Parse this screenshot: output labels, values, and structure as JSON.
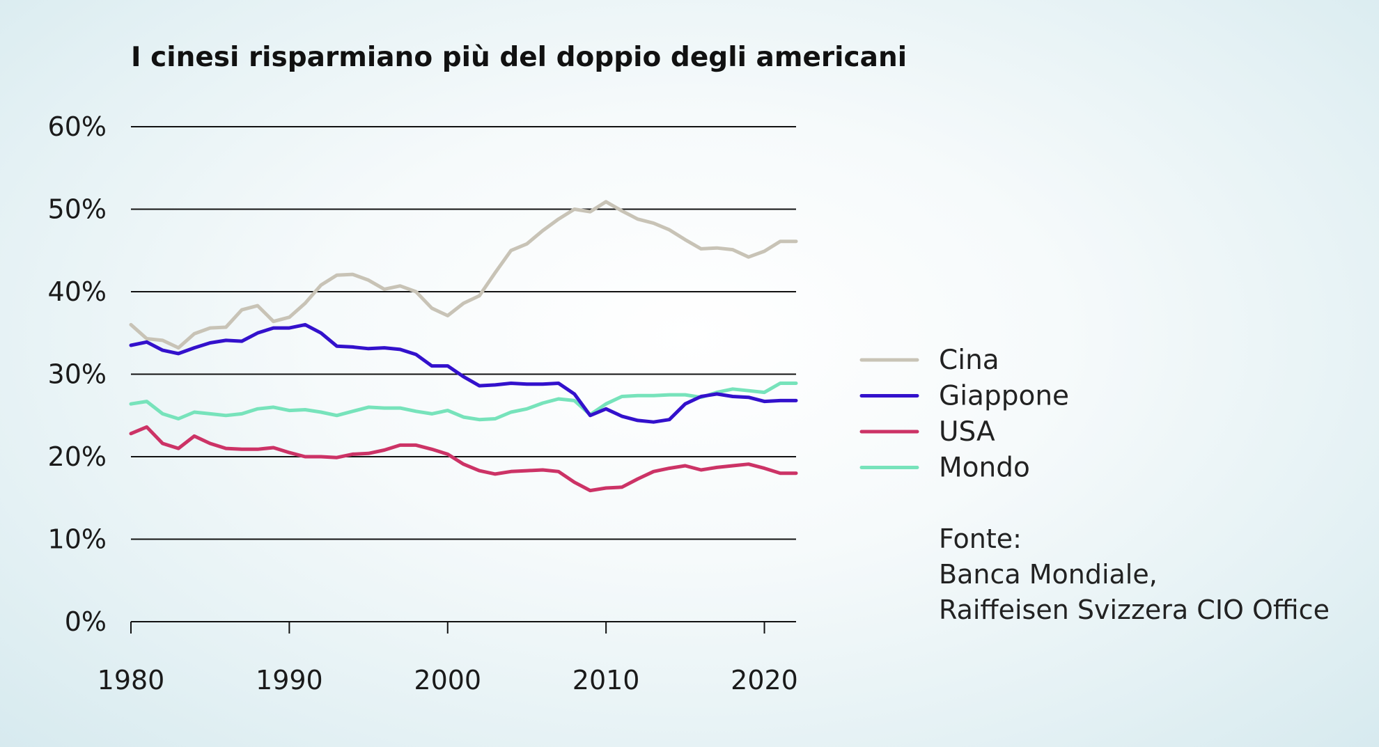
{
  "chart_data": {
    "type": "line",
    "title": "I cinesi risparmiano più del doppio degli americani",
    "xlabel": "",
    "ylabel": "",
    "xlim": [
      1980,
      2022
    ],
    "ylim": [
      0,
      60
    ],
    "x_ticks": [
      1980,
      1990,
      2000,
      2010,
      2020
    ],
    "x_tick_labels": [
      "1980",
      "1990",
      "2000",
      "2010",
      "2020"
    ],
    "y_ticks": [
      0,
      10,
      20,
      30,
      40,
      50,
      60
    ],
    "y_tick_labels": [
      "0%",
      "10%",
      "20%",
      "30%",
      "40%",
      "50%",
      "60%"
    ],
    "grid": true,
    "legend_position": "right",
    "x": [
      1980,
      1981,
      1982,
      1983,
      1984,
      1985,
      1986,
      1987,
      1988,
      1989,
      1990,
      1991,
      1992,
      1993,
      1994,
      1995,
      1996,
      1997,
      1998,
      1999,
      2000,
      2001,
      2002,
      2003,
      2004,
      2005,
      2006,
      2007,
      2008,
      2009,
      2010,
      2011,
      2012,
      2013,
      2014,
      2015,
      2016,
      2017,
      2018,
      2019,
      2020,
      2021,
      2022
    ],
    "series": [
      {
        "name": "Cina",
        "color": "#c8c3b6",
        "values": [
          36.0,
          34.3,
          34.1,
          33.2,
          34.9,
          35.6,
          35.7,
          37.8,
          38.3,
          36.4,
          36.9,
          38.6,
          40.8,
          42.0,
          42.1,
          41.4,
          40.3,
          40.7,
          40.0,
          38.0,
          37.1,
          38.6,
          39.5,
          42.3,
          45.0,
          45.8,
          47.4,
          48.8,
          50.0,
          49.7,
          50.9,
          49.8,
          48.8,
          48.3,
          47.5,
          46.3,
          45.2,
          45.3,
          45.1,
          44.2,
          44.9,
          46.1,
          46.1
        ]
      },
      {
        "name": "Giappone",
        "color": "#3311cc",
        "values": [
          33.5,
          33.9,
          32.9,
          32.5,
          33.2,
          33.8,
          34.1,
          34.0,
          35.0,
          35.6,
          35.6,
          36.0,
          35.0,
          33.4,
          33.3,
          33.1,
          33.2,
          33.0,
          32.4,
          31.0,
          31.0,
          29.7,
          28.6,
          28.7,
          28.9,
          28.8,
          28.8,
          28.9,
          27.6,
          25.0,
          25.8,
          24.9,
          24.4,
          24.2,
          24.5,
          26.4,
          27.3,
          27.6,
          27.3,
          27.2,
          26.7,
          26.8,
          26.8
        ]
      },
      {
        "name": "USA",
        "color": "#cc3366",
        "values": [
          22.8,
          23.6,
          21.6,
          21.0,
          22.5,
          21.6,
          21.0,
          20.9,
          20.9,
          21.1,
          20.5,
          20.0,
          20.0,
          19.9,
          20.3,
          20.4,
          20.8,
          21.4,
          21.4,
          20.9,
          20.3,
          19.1,
          18.3,
          17.9,
          18.2,
          18.3,
          18.4,
          18.2,
          16.9,
          15.9,
          16.2,
          16.3,
          17.3,
          18.2,
          18.6,
          18.9,
          18.4,
          18.7,
          18.9,
          19.1,
          18.6,
          18.0,
          18.0
        ]
      },
      {
        "name": "Mondo",
        "color": "#77e3bb",
        "values": [
          26.4,
          26.7,
          25.2,
          24.6,
          25.4,
          25.2,
          25.0,
          25.2,
          25.8,
          26.0,
          25.6,
          25.7,
          25.4,
          25.0,
          25.5,
          26.0,
          25.9,
          25.9,
          25.5,
          25.2,
          25.6,
          24.8,
          24.5,
          24.6,
          25.4,
          25.8,
          26.5,
          27.0,
          26.8,
          25.1,
          26.4,
          27.3,
          27.4,
          27.4,
          27.5,
          27.5,
          27.2,
          27.8,
          28.2,
          28.0,
          27.8,
          28.9,
          28.9
        ]
      }
    ],
    "source_label": "Fonte:",
    "source_lines": [
      "Banca Mondiale,",
      "Raiffeisen Svizzera CIO Office"
    ]
  }
}
